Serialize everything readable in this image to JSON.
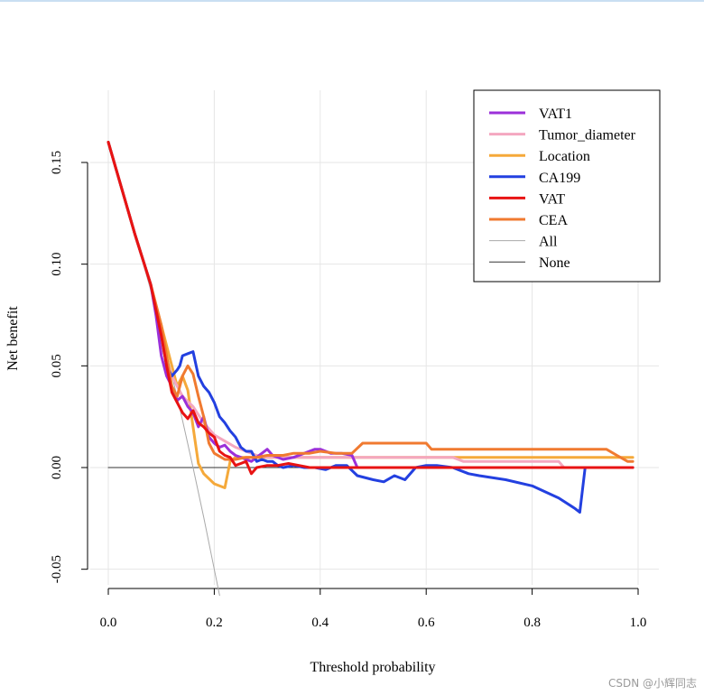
{
  "chart_data": {
    "type": "line",
    "title": "",
    "xlabel": "Threshold probability",
    "ylabel": "Net benefit",
    "xlim": [
      0.0,
      1.0
    ],
    "ylim": [
      -0.05,
      0.15
    ],
    "xticks": [
      "0.0",
      "0.2",
      "0.4",
      "0.6",
      "0.8",
      "1.0"
    ],
    "yticks": [
      "-0.05",
      "0.00",
      "0.05",
      "0.10",
      "0.15"
    ],
    "grid": true,
    "legend_position": "top-right",
    "series": [
      {
        "name": "VAT1",
        "color": "#9b30d9",
        "width": 3,
        "x": [
          0.0,
          0.05,
          0.08,
          0.09,
          0.1,
          0.11,
          0.12,
          0.13,
          0.14,
          0.15,
          0.16,
          0.17,
          0.18,
          0.19,
          0.2,
          0.21,
          0.22,
          0.23,
          0.24,
          0.25,
          0.27,
          0.29,
          0.3,
          0.31,
          0.33,
          0.35,
          0.37,
          0.39,
          0.4,
          0.42,
          0.44,
          0.46,
          0.47,
          0.48,
          0.55,
          0.65,
          0.75,
          0.85,
          0.99
        ],
        "y": [
          0.16,
          0.115,
          0.09,
          0.075,
          0.055,
          0.045,
          0.04,
          0.033,
          0.035,
          0.03,
          0.027,
          0.02,
          0.025,
          0.015,
          0.012,
          0.01,
          0.011,
          0.008,
          0.006,
          0.005,
          0.003,
          0.007,
          0.009,
          0.006,
          0.004,
          0.005,
          0.007,
          0.009,
          0.009,
          0.007,
          0.007,
          0.006,
          0.0,
          0.0,
          0.0,
          0.0,
          0.0,
          0.0,
          0.0
        ]
      },
      {
        "name": "Tumor_diameter",
        "color": "#f4a7c0",
        "width": 3,
        "x": [
          0.0,
          0.05,
          0.08,
          0.1,
          0.12,
          0.14,
          0.16,
          0.18,
          0.2,
          0.22,
          0.24,
          0.26,
          0.28,
          0.3,
          0.35,
          0.4,
          0.45,
          0.5,
          0.55,
          0.6,
          0.65,
          0.67,
          0.7,
          0.75,
          0.8,
          0.85,
          0.86,
          0.9,
          0.99
        ],
        "y": [
          0.16,
          0.115,
          0.09,
          0.06,
          0.045,
          0.035,
          0.03,
          0.022,
          0.016,
          0.013,
          0.01,
          0.008,
          0.006,
          0.005,
          0.005,
          0.005,
          0.005,
          0.005,
          0.005,
          0.005,
          0.005,
          0.003,
          0.003,
          0.003,
          0.003,
          0.003,
          0.0,
          0.0,
          0.0
        ]
      },
      {
        "name": "Location",
        "color": "#f5a93a",
        "width": 3,
        "x": [
          0.0,
          0.05,
          0.08,
          0.1,
          0.12,
          0.13,
          0.14,
          0.15,
          0.16,
          0.17,
          0.18,
          0.2,
          0.22,
          0.23,
          0.24,
          0.26,
          0.3,
          0.35,
          0.4,
          0.5,
          0.6,
          0.7,
          0.8,
          0.9,
          0.99
        ],
        "y": [
          0.16,
          0.115,
          0.09,
          0.07,
          0.05,
          0.04,
          0.045,
          0.038,
          0.02,
          0.002,
          -0.003,
          -0.008,
          -0.01,
          0.003,
          0.005,
          0.005,
          0.005,
          0.005,
          0.005,
          0.005,
          0.005,
          0.005,
          0.005,
          0.005,
          0.005
        ]
      },
      {
        "name": "CA199",
        "color": "#2340e0",
        "width": 3,
        "x": [
          0.0,
          0.05,
          0.08,
          0.1,
          0.11,
          0.12,
          0.13,
          0.135,
          0.14,
          0.15,
          0.16,
          0.17,
          0.18,
          0.19,
          0.2,
          0.21,
          0.22,
          0.23,
          0.24,
          0.25,
          0.26,
          0.27,
          0.28,
          0.29,
          0.3,
          0.31,
          0.32,
          0.33,
          0.35,
          0.37,
          0.39,
          0.41,
          0.43,
          0.45,
          0.47,
          0.5,
          0.52,
          0.54,
          0.56,
          0.58,
          0.6,
          0.62,
          0.65,
          0.68,
          0.7,
          0.75,
          0.8,
          0.85,
          0.88,
          0.89,
          0.9
        ],
        "y": [
          0.16,
          0.115,
          0.09,
          0.065,
          0.05,
          0.045,
          0.048,
          0.05,
          0.055,
          0.056,
          0.057,
          0.045,
          0.04,
          0.037,
          0.032,
          0.025,
          0.022,
          0.018,
          0.015,
          0.01,
          0.008,
          0.008,
          0.003,
          0.004,
          0.003,
          0.003,
          0.001,
          0.0,
          0.001,
          0.0,
          0.0,
          -0.001,
          0.001,
          0.001,
          -0.004,
          -0.006,
          -0.007,
          -0.004,
          -0.006,
          0.0,
          0.001,
          0.001,
          0.0,
          -0.003,
          -0.004,
          -0.006,
          -0.009,
          -0.015,
          -0.02,
          -0.022,
          0.0
        ]
      },
      {
        "name": "VAT",
        "color": "#e81313",
        "width": 3,
        "x": [
          0.0,
          0.05,
          0.08,
          0.1,
          0.11,
          0.12,
          0.13,
          0.14,
          0.15,
          0.16,
          0.17,
          0.18,
          0.19,
          0.2,
          0.21,
          0.22,
          0.23,
          0.24,
          0.25,
          0.26,
          0.27,
          0.28,
          0.3,
          0.32,
          0.34,
          0.36,
          0.38,
          0.4,
          0.5,
          0.6,
          0.7,
          0.8,
          0.9,
          0.99
        ],
        "y": [
          0.16,
          0.115,
          0.09,
          0.065,
          0.05,
          0.037,
          0.032,
          0.027,
          0.024,
          0.028,
          0.022,
          0.02,
          0.017,
          0.015,
          0.008,
          0.006,
          0.005,
          0.001,
          0.002,
          0.003,
          -0.003,
          0.0,
          0.001,
          0.001,
          0.002,
          0.001,
          0.0,
          0.0,
          0.0,
          0.0,
          0.0,
          0.0,
          0.0,
          0.0
        ]
      },
      {
        "name": "CEA",
        "color": "#f07a30",
        "width": 3,
        "x": [
          0.0,
          0.05,
          0.08,
          0.1,
          0.11,
          0.12,
          0.13,
          0.14,
          0.15,
          0.16,
          0.17,
          0.18,
          0.19,
          0.2,
          0.22,
          0.24,
          0.26,
          0.28,
          0.3,
          0.33,
          0.35,
          0.38,
          0.4,
          0.43,
          0.46,
          0.48,
          0.5,
          0.55,
          0.6,
          0.61,
          0.62,
          0.7,
          0.8,
          0.9,
          0.94,
          0.96,
          0.98,
          0.99
        ],
        "y": [
          0.16,
          0.115,
          0.09,
          0.07,
          0.055,
          0.04,
          0.035,
          0.045,
          0.05,
          0.046,
          0.035,
          0.025,
          0.012,
          0.007,
          0.004,
          0.004,
          0.005,
          0.005,
          0.006,
          0.006,
          0.007,
          0.007,
          0.008,
          0.007,
          0.007,
          0.012,
          0.012,
          0.012,
          0.012,
          0.009,
          0.009,
          0.009,
          0.009,
          0.009,
          0.009,
          0.006,
          0.003,
          0.003
        ]
      },
      {
        "name": "All",
        "color": "#a9a9a9",
        "width": 1,
        "x": [
          0.0,
          0.05,
          0.08,
          0.1,
          0.12,
          0.14,
          0.16,
          0.18,
          0.2,
          0.21
        ],
        "y": [
          0.16,
          0.115,
          0.0872,
          0.0667,
          0.0455,
          0.0233,
          0.0,
          -0.0244,
          -0.05,
          -0.0629
        ]
      },
      {
        "name": "None",
        "color": "#333333",
        "width": 1,
        "x": [
          0.0,
          0.99
        ],
        "y": [
          0.0,
          0.0
        ]
      }
    ]
  },
  "watermark": "CSDN @小辉同志"
}
